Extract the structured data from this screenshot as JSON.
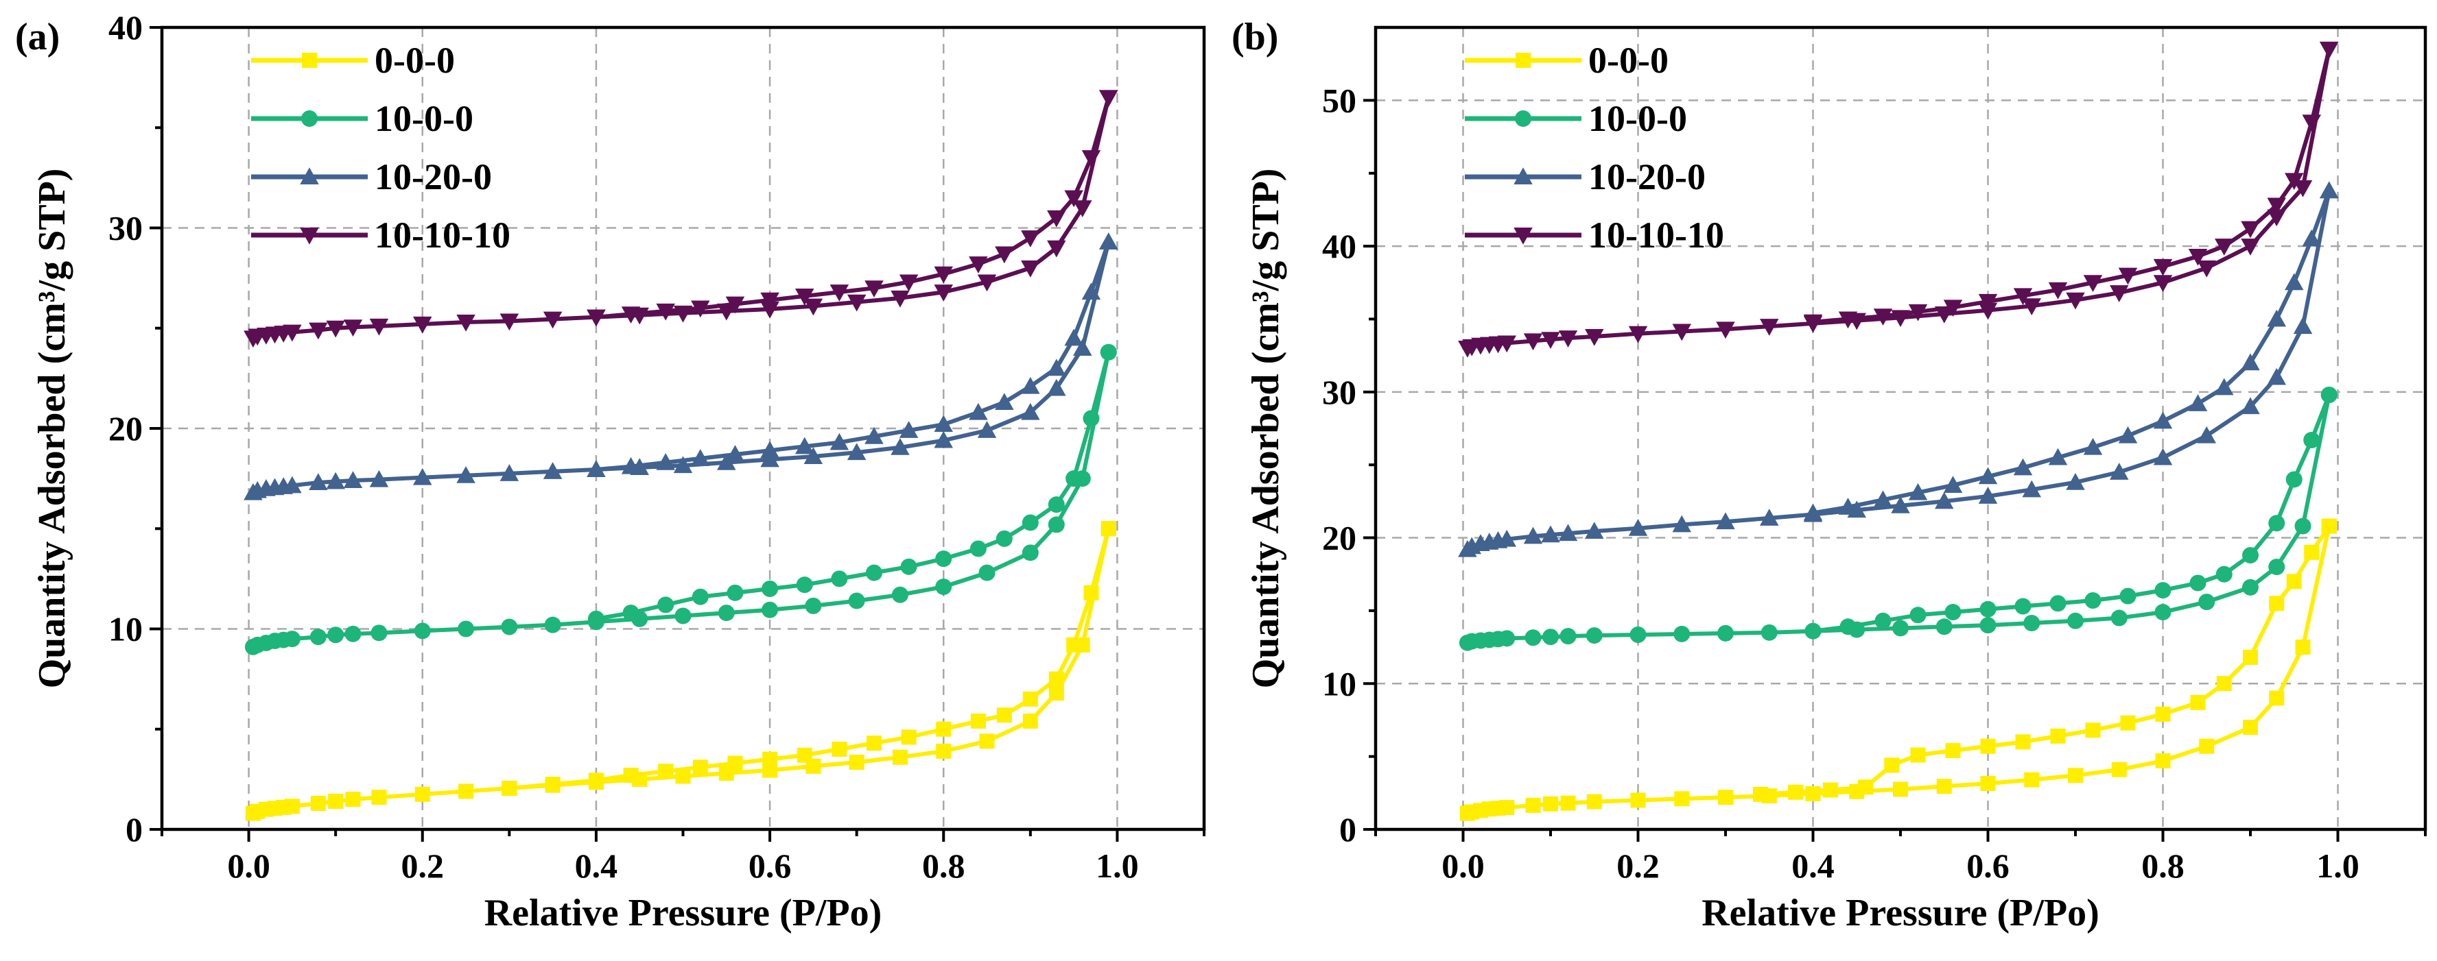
{
  "colors": {
    "0-0-0": "#FFEE00",
    "10-0-0": "#1DB57A",
    "10-20-0": "#42628F",
    "10-10-10": "#5B0F52"
  },
  "chart_data": [
    {
      "type": "line",
      "panel_label": "(a)",
      "xlabel": "Relative Pressure (P/Po)",
      "ylabel": "Quantity Adsorbed (cm³/g STP)",
      "xlim": [
        -0.1,
        1.1
      ],
      "ylim": [
        0,
        40
      ],
      "xticks": [
        "0.0",
        "0.2",
        "0.4",
        "0.6",
        "0.8",
        "1.0"
      ],
      "xtick_values": [
        0,
        0.2,
        0.4,
        0.6,
        0.8,
        1.0
      ],
      "yticks": [
        "0",
        "10",
        "20",
        "30",
        "40"
      ],
      "ytick_values": [
        0,
        10,
        20,
        30,
        40
      ],
      "grid": true,
      "legend_position": "top-left",
      "series": [
        {
          "name": "0-0-0",
          "marker": "square",
          "adsorption": {
            "x": [
              0.005,
              0.01,
              0.02,
              0.03,
              0.04,
              0.05,
              0.08,
              0.1,
              0.12,
              0.15,
              0.2,
              0.25,
              0.3,
              0.35,
              0.4,
              0.45,
              0.5,
              0.55,
              0.6,
              0.65,
              0.7,
              0.75,
              0.8,
              0.85,
              0.9,
              0.93,
              0.96,
              0.99
            ],
            "y": [
              0.8,
              0.9,
              1.0,
              1.05,
              1.1,
              1.15,
              1.3,
              1.4,
              1.5,
              1.6,
              1.75,
              1.9,
              2.05,
              2.2,
              2.35,
              2.5,
              2.65,
              2.8,
              2.95,
              3.15,
              3.35,
              3.6,
              3.9,
              4.4,
              5.4,
              6.8,
              9.2,
              15.0
            ]
          },
          "desorption": {
            "x": [
              0.99,
              0.97,
              0.95,
              0.93,
              0.9,
              0.87,
              0.84,
              0.8,
              0.76,
              0.72,
              0.68,
              0.64,
              0.6,
              0.56,
              0.52,
              0.48,
              0.44,
              0.4,
              0.35,
              0.3
            ],
            "y": [
              15.0,
              11.8,
              9.2,
              7.5,
              6.5,
              5.7,
              5.4,
              5.0,
              4.6,
              4.3,
              4.0,
              3.7,
              3.5,
              3.3,
              3.1,
              2.9,
              2.7,
              2.45,
              2.25,
              2.05
            ]
          }
        },
        {
          "name": "10-0-0",
          "marker": "circle",
          "adsorption": {
            "x": [
              0.005,
              0.01,
              0.02,
              0.03,
              0.04,
              0.05,
              0.08,
              0.1,
              0.12,
              0.15,
              0.2,
              0.25,
              0.3,
              0.35,
              0.4,
              0.45,
              0.5,
              0.55,
              0.6,
              0.65,
              0.7,
              0.75,
              0.8,
              0.85,
              0.9,
              0.93,
              0.96,
              0.99
            ],
            "y": [
              9.1,
              9.2,
              9.3,
              9.4,
              9.45,
              9.5,
              9.6,
              9.7,
              9.75,
              9.8,
              9.9,
              10.0,
              10.1,
              10.2,
              10.35,
              10.5,
              10.65,
              10.8,
              10.95,
              11.15,
              11.4,
              11.7,
              12.1,
              12.8,
              13.8,
              15.2,
              17.5,
              23.8
            ]
          },
          "desorption": {
            "x": [
              0.99,
              0.97,
              0.95,
              0.93,
              0.9,
              0.87,
              0.84,
              0.8,
              0.76,
              0.72,
              0.68,
              0.64,
              0.6,
              0.56,
              0.52,
              0.48,
              0.44,
              0.4
            ],
            "y": [
              23.8,
              20.5,
              17.5,
              16.2,
              15.3,
              14.5,
              14.0,
              13.5,
              13.1,
              12.8,
              12.5,
              12.2,
              12.0,
              11.8,
              11.6,
              11.2,
              10.8,
              10.5
            ]
          }
        },
        {
          "name": "10-20-0",
          "marker": "triangle-up",
          "adsorption": {
            "x": [
              0.005,
              0.01,
              0.02,
              0.03,
              0.04,
              0.05,
              0.08,
              0.1,
              0.12,
              0.15,
              0.2,
              0.25,
              0.3,
              0.35,
              0.4,
              0.45,
              0.5,
              0.55,
              0.6,
              0.65,
              0.7,
              0.75,
              0.8,
              0.85,
              0.9,
              0.93,
              0.96,
              0.99
            ],
            "y": [
              16.8,
              16.9,
              17.0,
              17.05,
              17.1,
              17.15,
              17.3,
              17.35,
              17.4,
              17.45,
              17.55,
              17.65,
              17.75,
              17.85,
              17.95,
              18.05,
              18.15,
              18.3,
              18.45,
              18.6,
              18.8,
              19.05,
              19.4,
              19.9,
              20.8,
              22.0,
              24.0,
              29.3
            ]
          },
          "desorption": {
            "x": [
              0.99,
              0.97,
              0.95,
              0.93,
              0.9,
              0.87,
              0.84,
              0.8,
              0.76,
              0.72,
              0.68,
              0.64,
              0.6,
              0.56,
              0.52,
              0.48,
              0.44,
              0.4
            ],
            "y": [
              29.3,
              26.8,
              24.5,
              23.0,
              22.1,
              21.3,
              20.8,
              20.2,
              19.9,
              19.6,
              19.3,
              19.1,
              18.9,
              18.7,
              18.5,
              18.3,
              18.1,
              17.95
            ]
          }
        },
        {
          "name": "10-10-10",
          "marker": "triangle-down",
          "adsorption": {
            "x": [
              0.005,
              0.01,
              0.02,
              0.03,
              0.04,
              0.05,
              0.08,
              0.1,
              0.12,
              0.15,
              0.2,
              0.25,
              0.3,
              0.35,
              0.4,
              0.45,
              0.5,
              0.55,
              0.6,
              0.65,
              0.7,
              0.75,
              0.8,
              0.85,
              0.9,
              0.93,
              0.96,
              0.99
            ],
            "y": [
              24.5,
              24.6,
              24.65,
              24.7,
              24.75,
              24.8,
              24.9,
              25.0,
              25.05,
              25.1,
              25.2,
              25.3,
              25.35,
              25.45,
              25.55,
              25.65,
              25.75,
              25.85,
              25.95,
              26.1,
              26.3,
              26.5,
              26.8,
              27.3,
              28.0,
              29.0,
              31.0,
              36.5
            ]
          },
          "desorption": {
            "x": [
              0.99,
              0.97,
              0.95,
              0.93,
              0.9,
              0.87,
              0.84,
              0.8,
              0.76,
              0.72,
              0.68,
              0.64,
              0.6,
              0.56,
              0.52,
              0.48,
              0.44,
              0.4
            ],
            "y": [
              36.5,
              33.5,
              31.5,
              30.5,
              29.5,
              28.7,
              28.2,
              27.7,
              27.3,
              27.0,
              26.8,
              26.6,
              26.4,
              26.2,
              26.0,
              25.85,
              25.7,
              25.55
            ]
          }
        }
      ]
    },
    {
      "type": "line",
      "panel_label": "(b)",
      "xlabel": "Relative Pressure (P/Po)",
      "ylabel": "Quantity Adsorbed (cm³/g STP)",
      "xlim": [
        -0.1,
        1.1
      ],
      "ylim": [
        0,
        55
      ],
      "xticks": [
        "0.0",
        "0.2",
        "0.4",
        "0.6",
        "0.8",
        "1.0"
      ],
      "xtick_values": [
        0,
        0.2,
        0.4,
        0.6,
        0.8,
        1.0
      ],
      "yticks": [
        "0",
        "10",
        "20",
        "30",
        "40",
        "50"
      ],
      "ytick_values": [
        0,
        10,
        20,
        30,
        40,
        50
      ],
      "grid": true,
      "legend_position": "top-left",
      "series": [
        {
          "name": "0-0-0",
          "marker": "square",
          "adsorption": {
            "x": [
              0.005,
              0.01,
              0.02,
              0.03,
              0.04,
              0.05,
              0.08,
              0.1,
              0.12,
              0.15,
              0.2,
              0.25,
              0.3,
              0.35,
              0.4,
              0.45,
              0.5,
              0.55,
              0.6,
              0.65,
              0.7,
              0.75,
              0.8,
              0.85,
              0.9,
              0.93,
              0.96,
              0.99
            ],
            "y": [
              1.1,
              1.2,
              1.3,
              1.4,
              1.45,
              1.5,
              1.65,
              1.75,
              1.8,
              1.9,
              2.0,
              2.1,
              2.2,
              2.3,
              2.45,
              2.6,
              2.75,
              2.95,
              3.15,
              3.4,
              3.7,
              4.1,
              4.7,
              5.7,
              7.0,
              9.0,
              12.5,
              20.8
            ]
          },
          "desorption": {
            "x": [
              0.99,
              0.97,
              0.95,
              0.93,
              0.9,
              0.87,
              0.84,
              0.8,
              0.76,
              0.72,
              0.68,
              0.64,
              0.6,
              0.56,
              0.52,
              0.49,
              0.46,
              0.42,
              0.38,
              0.34
            ],
            "y": [
              20.8,
              19.0,
              17.0,
              15.5,
              11.8,
              10.0,
              8.7,
              7.9,
              7.3,
              6.8,
              6.4,
              6.0,
              5.7,
              5.4,
              5.1,
              4.4,
              2.9,
              2.7,
              2.55,
              2.4
            ]
          }
        },
        {
          "name": "10-0-0",
          "marker": "circle",
          "adsorption": {
            "x": [
              0.005,
              0.01,
              0.02,
              0.03,
              0.04,
              0.05,
              0.08,
              0.1,
              0.12,
              0.15,
              0.2,
              0.25,
              0.3,
              0.35,
              0.4,
              0.45,
              0.5,
              0.55,
              0.6,
              0.65,
              0.7,
              0.75,
              0.8,
              0.85,
              0.9,
              0.93,
              0.96,
              0.99
            ],
            "y": [
              12.8,
              12.9,
              12.95,
              13.0,
              13.05,
              13.1,
              13.15,
              13.2,
              13.25,
              13.3,
              13.35,
              13.4,
              13.45,
              13.5,
              13.6,
              13.7,
              13.8,
              13.9,
              14.0,
              14.15,
              14.3,
              14.5,
              14.9,
              15.6,
              16.6,
              18.0,
              20.8,
              29.8
            ]
          },
          "desorption": {
            "x": [
              0.99,
              0.97,
              0.95,
              0.93,
              0.9,
              0.87,
              0.84,
              0.8,
              0.76,
              0.72,
              0.68,
              0.64,
              0.6,
              0.56,
              0.52,
              0.48,
              0.44,
              0.4
            ],
            "y": [
              29.8,
              26.7,
              24.0,
              21.0,
              18.8,
              17.5,
              16.9,
              16.4,
              16.0,
              15.7,
              15.5,
              15.3,
              15.1,
              14.9,
              14.7,
              14.3,
              13.9,
              13.6
            ]
          }
        },
        {
          "name": "10-20-0",
          "marker": "triangle-up",
          "adsorption": {
            "x": [
              0.005,
              0.01,
              0.02,
              0.03,
              0.04,
              0.05,
              0.08,
              0.1,
              0.12,
              0.15,
              0.2,
              0.25,
              0.3,
              0.35,
              0.4,
              0.45,
              0.5,
              0.55,
              0.6,
              0.65,
              0.7,
              0.75,
              0.8,
              0.85,
              0.9,
              0.93,
              0.96,
              0.99
            ],
            "y": [
              19.2,
              19.4,
              19.6,
              19.7,
              19.8,
              19.9,
              20.1,
              20.2,
              20.3,
              20.45,
              20.65,
              20.9,
              21.1,
              21.35,
              21.6,
              21.9,
              22.2,
              22.5,
              22.85,
              23.3,
              23.8,
              24.5,
              25.5,
              27.0,
              29.0,
              31.0,
              34.5,
              43.8
            ]
          },
          "desorption": {
            "x": [
              0.99,
              0.97,
              0.95,
              0.93,
              0.9,
              0.87,
              0.84,
              0.8,
              0.76,
              0.72,
              0.68,
              0.64,
              0.6,
              0.56,
              0.52,
              0.48,
              0.44,
              0.4
            ],
            "y": [
              43.8,
              40.5,
              37.5,
              35.0,
              32.0,
              30.3,
              29.2,
              28.0,
              27.0,
              26.2,
              25.5,
              24.8,
              24.2,
              23.6,
              23.1,
              22.6,
              22.1,
              21.7
            ]
          }
        },
        {
          "name": "10-10-10",
          "marker": "triangle-down",
          "adsorption": {
            "x": [
              0.005,
              0.01,
              0.02,
              0.03,
              0.04,
              0.05,
              0.08,
              0.1,
              0.12,
              0.15,
              0.2,
              0.25,
              0.3,
              0.35,
              0.4,
              0.45,
              0.5,
              0.55,
              0.6,
              0.65,
              0.7,
              0.75,
              0.8,
              0.85,
              0.9,
              0.93,
              0.96,
              0.99
            ],
            "y": [
              33.0,
              33.1,
              33.2,
              33.25,
              33.3,
              33.35,
              33.5,
              33.6,
              33.7,
              33.8,
              34.0,
              34.15,
              34.3,
              34.5,
              34.7,
              34.9,
              35.1,
              35.35,
              35.6,
              35.9,
              36.3,
              36.8,
              37.5,
              38.5,
              40.0,
              42.0,
              44.0,
              53.5
            ]
          },
          "desorption": {
            "x": [
              0.99,
              0.97,
              0.95,
              0.93,
              0.9,
              0.87,
              0.84,
              0.8,
              0.76,
              0.72,
              0.68,
              0.64,
              0.6,
              0.56,
              0.52,
              0.48,
              0.44,
              0.4
            ],
            "y": [
              53.5,
              48.5,
              44.5,
              42.8,
              41.2,
              40.0,
              39.3,
              38.6,
              38.0,
              37.5,
              37.0,
              36.6,
              36.2,
              35.8,
              35.5,
              35.2,
              35.0,
              34.8
            ]
          }
        }
      ]
    }
  ]
}
